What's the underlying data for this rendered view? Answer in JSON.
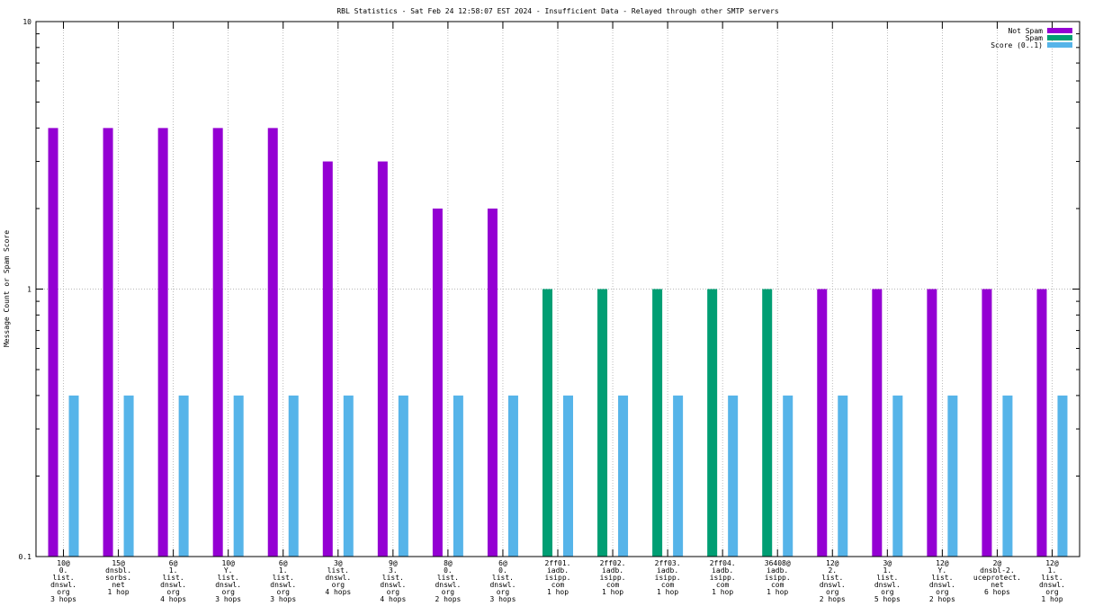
{
  "chart_data": {
    "type": "bar",
    "scale": "log",
    "title": "RBL Statistics - Sat Feb 24 12:58:07 EST 2024 - Insufficient Data - Relayed through other SMTP servers",
    "ylabel": "Message Count or Spam Score",
    "xlabel": "",
    "ylim": [
      0.1,
      10
    ],
    "yticks": [
      {
        "value": 0.1,
        "label": "0.1"
      },
      {
        "value": 1,
        "label": "1"
      },
      {
        "value": 10,
        "label": "10"
      }
    ],
    "grid": true,
    "legend_position": "top-right",
    "categories": [
      [
        "10@",
        "0.",
        "list.",
        "dnswl.",
        "org",
        "3 hops"
      ],
      [
        "15@",
        "dnsbl.",
        "sorbs.",
        "net",
        "1 hop"
      ],
      [
        "6@",
        "1.",
        "list.",
        "dnswl.",
        "org",
        "4 hops"
      ],
      [
        "10@",
        "Y.",
        "list.",
        "dnswl.",
        "org",
        "3 hops"
      ],
      [
        "6@",
        "1.",
        "list.",
        "dnswl.",
        "org",
        "3 hops"
      ],
      [
        "3@",
        "list.",
        "dnswl.",
        "org",
        "4 hops"
      ],
      [
        "9@",
        "3.",
        "list.",
        "dnswl.",
        "org",
        "4 hops"
      ],
      [
        "8@",
        "0.",
        "list.",
        "dnswl.",
        "org",
        "2 hops"
      ],
      [
        "6@",
        "0.",
        "list.",
        "dnswl.",
        "org",
        "3 hops"
      ],
      [
        "2ff01.",
        "iadb.",
        "isipp.",
        "com",
        "1 hop"
      ],
      [
        "2ff02.",
        "iadb.",
        "isipp.",
        "com",
        "1 hop"
      ],
      [
        "2ff03.",
        "iadb.",
        "isipp.",
        "com",
        "1 hop"
      ],
      [
        "2ff04.",
        "iadb.",
        "isipp.",
        "com",
        "1 hop"
      ],
      [
        "36408@",
        "iadb.",
        "isipp.",
        "com",
        "1 hop"
      ],
      [
        "12@",
        "2.",
        "list.",
        "dnswl.",
        "org",
        "2 hops"
      ],
      [
        "3@",
        "1.",
        "list.",
        "dnswl.",
        "org",
        "5 hops"
      ],
      [
        "12@",
        "Y.",
        "list.",
        "dnswl.",
        "org",
        "2 hops"
      ],
      [
        "2@",
        "dnsbl-2.",
        "uceprotect.",
        "net",
        "6 hops"
      ],
      [
        "12@",
        "1.",
        "list.",
        "dnswl.",
        "org",
        "1 hop"
      ]
    ],
    "series": [
      {
        "name": "Not Spam",
        "color": "#9400d3",
        "values": [
          4,
          4,
          4,
          4,
          4,
          3,
          3,
          2,
          2,
          null,
          null,
          null,
          null,
          null,
          1,
          1,
          1,
          1,
          1
        ]
      },
      {
        "name": "Spam",
        "color": "#009e73",
        "values": [
          null,
          null,
          null,
          null,
          null,
          null,
          null,
          null,
          null,
          1,
          1,
          1,
          1,
          1,
          null,
          null,
          null,
          null,
          null
        ]
      },
      {
        "name": "Score (0..1)",
        "color": "#56b4e9",
        "values": [
          0.4,
          0.4,
          0.4,
          0.4,
          0.4,
          0.4,
          0.4,
          0.4,
          0.4,
          0.4,
          0.4,
          0.4,
          0.4,
          0.4,
          0.4,
          0.4,
          0.4,
          0.4,
          0.4
        ]
      }
    ]
  }
}
